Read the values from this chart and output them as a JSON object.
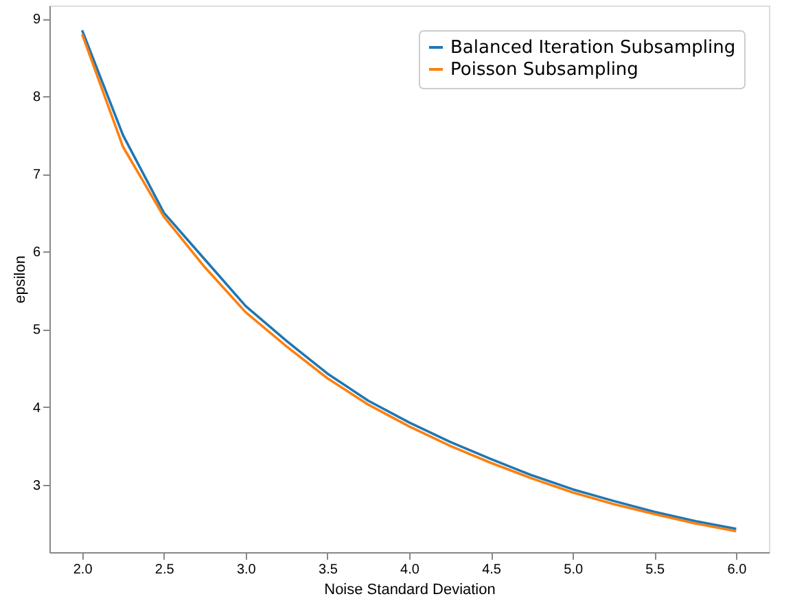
{
  "chart_data": {
    "type": "line",
    "xlabel": "Noise Standard Deviation",
    "ylabel": "epsilon",
    "x": [
      2.0,
      2.25,
      2.5,
      2.75,
      3.0,
      3.25,
      3.5,
      3.75,
      4.0,
      4.25,
      4.5,
      4.75,
      5.0,
      5.25,
      5.5,
      5.75,
      6.0
    ],
    "series": [
      {
        "name": "Balanced Iteration Subsampling",
        "color": "#1f77b4",
        "values": [
          8.85,
          7.5,
          6.5,
          5.9,
          5.3,
          4.85,
          4.43,
          4.08,
          3.8,
          3.55,
          3.33,
          3.12,
          2.94,
          2.79,
          2.65,
          2.53,
          2.43
        ]
      },
      {
        "name": "Poisson Subsampling",
        "color": "#ff7f0e",
        "values": [
          8.8,
          7.35,
          6.45,
          5.8,
          5.22,
          4.78,
          4.37,
          4.03,
          3.75,
          3.5,
          3.28,
          3.08,
          2.9,
          2.75,
          2.62,
          2.5,
          2.4
        ]
      }
    ],
    "xlim": [
      1.8,
      6.2
    ],
    "xticks": [
      {
        "value": 2.0,
        "label": "2.0"
      },
      {
        "value": 2.5,
        "label": "2.5"
      },
      {
        "value": 3.0,
        "label": "3.0"
      },
      {
        "value": 3.5,
        "label": "3.5"
      },
      {
        "value": 4.0,
        "label": "4.0"
      },
      {
        "value": 4.5,
        "label": "4.5"
      },
      {
        "value": 5.0,
        "label": "5.0"
      },
      {
        "value": 5.5,
        "label": "5.5"
      },
      {
        "value": 6.0,
        "label": "6.0"
      }
    ],
    "ylim": [
      2.13,
      9.17
    ],
    "yticks": [
      3,
      4,
      5,
      6,
      7,
      8,
      9
    ],
    "grid": false,
    "legend": "top right",
    "marker": "none",
    "line_style": "solid"
  }
}
